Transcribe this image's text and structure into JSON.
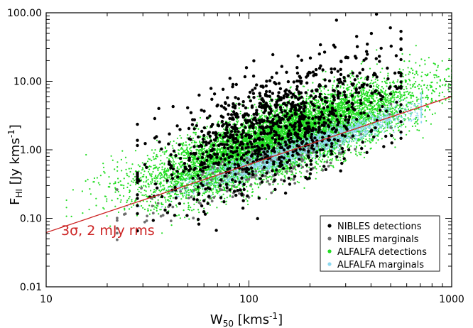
{
  "chart_data": {
    "type": "scatter",
    "xscale": "log",
    "yscale": "log",
    "xlim": [
      10,
      1000
    ],
    "ylim": [
      0.01,
      100
    ],
    "xticks": [
      "10",
      "100",
      "1000"
    ],
    "yticks": [
      "0.01",
      "0.10",
      "1.00",
      "10.00",
      "100.00"
    ],
    "xlabel": {
      "main": "W",
      "sub": "50",
      "rest": " [kms",
      "sup": "-1",
      "end": "]"
    },
    "ylabel": {
      "main": "F",
      "sub": "HI",
      "rest": " [Jy kms",
      "sup": "-1",
      "end": "]"
    },
    "legend_position": "bottom-right",
    "series": [
      {
        "name": "NIBLES detections",
        "color": "#000000",
        "marker_r": 2.2,
        "count": 1100,
        "logw_range": [
          1.45,
          2.75
        ],
        "logw_mean": 2.12,
        "logw_sd": 0.28,
        "logf_offset": 0.42,
        "logf_sd": 0.4
      },
      {
        "name": "NIBLES marginals",
        "color": "#6e6e6e",
        "marker_r": 1.9,
        "count": 150,
        "logw_range": [
          1.35,
          2.7
        ],
        "logw_mean": 2.0,
        "logw_sd": 0.32,
        "logf_offset": -0.15,
        "logf_sd": 0.16
      },
      {
        "name": "ALFALFA detections",
        "color": "#22dd22",
        "marker_r": 1.1,
        "count": 9000,
        "logw_range": [
          1.1,
          3.0
        ],
        "logw_mean": 2.15,
        "logw_sd": 0.32,
        "logf_offset": 0.2,
        "logf_sd": 0.24
      },
      {
        "name": "ALFALFA marginals",
        "color": "#8ed8ef",
        "marker_r": 1.0,
        "count": 2600,
        "logw_range": [
          1.4,
          2.85
        ],
        "logw_mean": 2.25,
        "logw_sd": 0.28,
        "logf_offset": -0.02,
        "logf_sd": 0.09
      }
    ],
    "lines": [
      {
        "name": "3σ, 2 mJy rms",
        "color": "#cc2222",
        "x": [
          10,
          1000
        ],
        "y": [
          0.062,
          6.0
        ]
      }
    ],
    "annotations": [
      {
        "text": "3σ, 2 mJy rms",
        "color": "#cc2222"
      }
    ]
  }
}
